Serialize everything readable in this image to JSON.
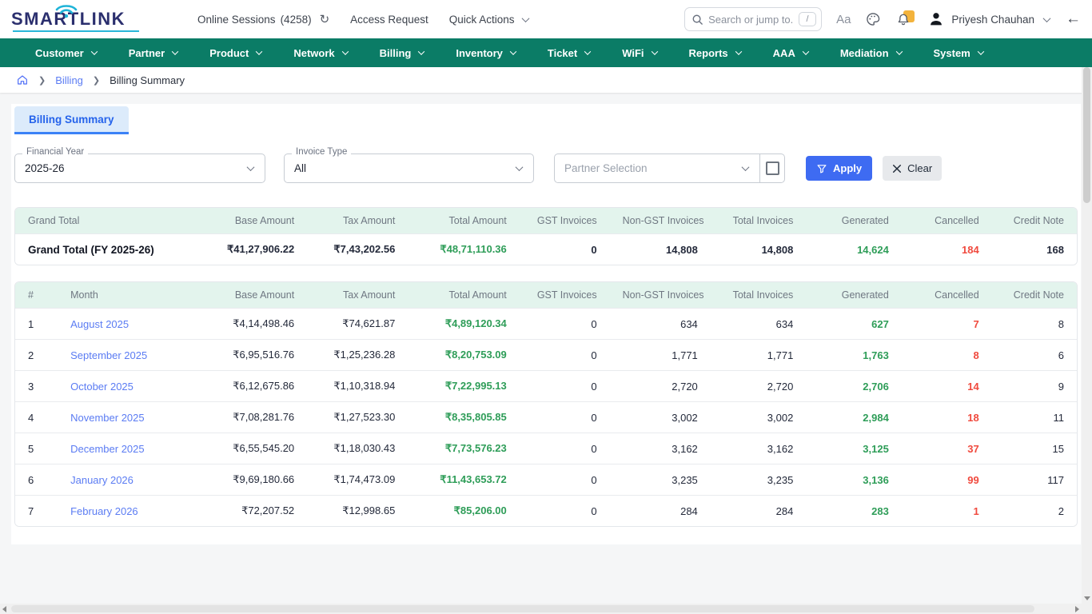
{
  "header": {
    "logo_text": "SMARTLINK",
    "online_sessions_label": "Online Sessions",
    "online_sessions_count": "(4258)",
    "access_request_label": "Access Request",
    "quick_actions_label": "Quick Actions",
    "search_placeholder": "Search or jump to...",
    "search_shortcut": "/",
    "font_size_control": "Aa",
    "user_name": "Priyesh Chauhan"
  },
  "nav": {
    "items": [
      "Customer",
      "Partner",
      "Product",
      "Network",
      "Billing",
      "Inventory",
      "Ticket",
      "WiFi",
      "Reports",
      "AAA",
      "Mediation",
      "System"
    ]
  },
  "breadcrumb": {
    "section": "Billing",
    "current": "Billing Summary"
  },
  "tabs": {
    "active": "Billing Summary"
  },
  "filters": {
    "financial_year_label": "Financial Year",
    "financial_year_value": "2025-26",
    "invoice_type_label": "Invoice Type",
    "invoice_type_value": "All",
    "partner_selection_placeholder": "Partner Selection",
    "apply_label": "Apply",
    "clear_label": "Clear"
  },
  "grand_total_table": {
    "headers": [
      "Grand Total",
      "Base Amount",
      "Tax Amount",
      "Total Amount",
      "GST Invoices",
      "Non-GST Invoices",
      "Total Invoices",
      "Generated",
      "Cancelled",
      "Credit Note"
    ],
    "row": {
      "label": "Grand Total (FY 2025-26)",
      "base_amount": "₹41,27,906.22",
      "tax_amount": "₹7,43,202.56",
      "total_amount": "₹48,71,110.36",
      "gst_invoices": "0",
      "non_gst_invoices": "14,808",
      "total_invoices": "14,808",
      "generated": "14,624",
      "cancelled": "184",
      "credit_note": "168"
    }
  },
  "monthly_table": {
    "headers": [
      "#",
      "Month",
      "Base Amount",
      "Tax Amount",
      "Total Amount",
      "GST Invoices",
      "Non-GST Invoices",
      "Total Invoices",
      "Generated",
      "Cancelled",
      "Credit Note"
    ],
    "rows": [
      {
        "index": "1",
        "month": "August 2025",
        "base_amount": "₹4,14,498.46",
        "tax_amount": "₹74,621.87",
        "total_amount": "₹4,89,120.34",
        "gst_invoices": "0",
        "non_gst_invoices": "634",
        "total_invoices": "634",
        "generated": "627",
        "cancelled": "7",
        "credit_note": "8"
      },
      {
        "index": "2",
        "month": "September 2025",
        "base_amount": "₹6,95,516.76",
        "tax_amount": "₹1,25,236.28",
        "total_amount": "₹8,20,753.09",
        "gst_invoices": "0",
        "non_gst_invoices": "1,771",
        "total_invoices": "1,771",
        "generated": "1,763",
        "cancelled": "8",
        "credit_note": "6"
      },
      {
        "index": "3",
        "month": "October 2025",
        "base_amount": "₹6,12,675.86",
        "tax_amount": "₹1,10,318.94",
        "total_amount": "₹7,22,995.13",
        "gst_invoices": "0",
        "non_gst_invoices": "2,720",
        "total_invoices": "2,720",
        "generated": "2,706",
        "cancelled": "14",
        "credit_note": "9"
      },
      {
        "index": "4",
        "month": "November 2025",
        "base_amount": "₹7,08,281.76",
        "tax_amount": "₹1,27,523.30",
        "total_amount": "₹8,35,805.85",
        "gst_invoices": "0",
        "non_gst_invoices": "3,002",
        "total_invoices": "3,002",
        "generated": "2,984",
        "cancelled": "18",
        "credit_note": "11"
      },
      {
        "index": "5",
        "month": "December 2025",
        "base_amount": "₹6,55,545.20",
        "tax_amount": "₹1,18,030.43",
        "total_amount": "₹7,73,576.23",
        "gst_invoices": "0",
        "non_gst_invoices": "3,162",
        "total_invoices": "3,162",
        "generated": "3,125",
        "cancelled": "37",
        "credit_note": "15"
      },
      {
        "index": "6",
        "month": "January 2026",
        "base_amount": "₹9,69,180.66",
        "tax_amount": "₹1,74,473.09",
        "total_amount": "₹11,43,653.72",
        "gst_invoices": "0",
        "non_gst_invoices": "3,235",
        "total_invoices": "3,235",
        "generated": "3,136",
        "cancelled": "99",
        "credit_note": "117"
      },
      {
        "index": "7",
        "month": "February 2026",
        "base_amount": "₹72,207.52",
        "tax_amount": "₹12,998.65",
        "total_amount": "₹85,206.00",
        "gst_invoices": "0",
        "non_gst_invoices": "284",
        "total_invoices": "284",
        "generated": "283",
        "cancelled": "1",
        "credit_note": "2"
      }
    ]
  },
  "colors": {
    "nav_green": "#0b7c66",
    "table_header_mint": "#e3f4ed",
    "positive_green": "#2e9d58",
    "negative_red": "#f04a3e",
    "link_blue": "#5b7cf3",
    "apply_blue": "#3e6bf2",
    "notification_badge_yellow": "#f3b33c"
  }
}
